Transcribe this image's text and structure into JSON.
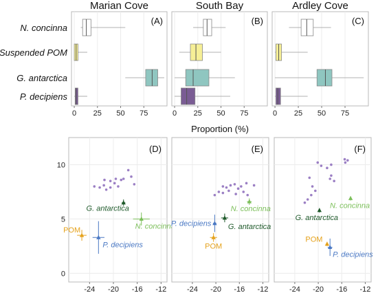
{
  "chart_data": {
    "type": "composite",
    "colors": {
      "purple": "#9b7fc4",
      "boxPurple": "#7a5c94",
      "teal": "#8fc6c0",
      "yellow": "#f6ef96",
      "orange": "#e5a21c",
      "blue": "#4b79c4",
      "green": "#7cbf5a",
      "darkgreen": "#1f5a2b",
      "frame": "#b8b8b8",
      "grid": "#ececec"
    },
    "boxplots": {
      "xlabel": "Proportion (%)",
      "xticks": [
        0,
        25,
        50,
        75
      ],
      "xlim": [
        -3,
        100
      ],
      "categories": [
        "N. concinna",
        "Suspended POM",
        "G. antarctica",
        "P. decipiens"
      ],
      "panels": [
        {
          "title": "Marian Cove",
          "letter": "(A)",
          "boxes": [
            {
              "category": "N. concinna",
              "whisker": [
                7,
                55
              ],
              "q1": 9,
              "median": 13,
              "q3": 18,
              "fill": "#ffffff"
            },
            {
              "category": "Suspended POM",
              "whisker": [
                0,
                14
              ],
              "q1": 0,
              "median": 2,
              "q3": 4,
              "fill": "#f6ef96"
            },
            {
              "category": "G. antarctica",
              "whisker": [
                55,
                97
              ],
              "q1": 77,
              "median": 84,
              "q3": 90,
              "fill": "#8fc6c0"
            },
            {
              "category": "P. decipiens",
              "whisker": [
                0,
                14
              ],
              "q1": 1,
              "median": 2,
              "q3": 4,
              "fill": "#7a5c94"
            }
          ]
        },
        {
          "title": "South Bay",
          "letter": "(B)",
          "boxes": [
            {
              "category": "N. concinna",
              "whisker": [
                20,
                55
              ],
              "q1": 31,
              "median": 35,
              "q3": 40,
              "fill": "#ffffff"
            },
            {
              "category": "Suspended POM",
              "whisker": [
                5,
                50
              ],
              "q1": 17,
              "median": 23,
              "q3": 30,
              "fill": "#f6ef96"
            },
            {
              "category": "G. antarctica",
              "whisker": [
                0,
                65
              ],
              "q1": 12,
              "median": 20,
              "q3": 37,
              "fill": "#8fc6c0"
            },
            {
              "category": "P. decipiens",
              "whisker": [
                0,
                60
              ],
              "q1": 7,
              "median": 13,
              "q3": 22,
              "fill": "#7a5c94"
            }
          ]
        },
        {
          "title": "Ardley Cove",
          "letter": "(C)",
          "boxes": [
            {
              "category": "N. concinna",
              "whisker": [
                15,
                60
              ],
              "q1": 28,
              "median": 34,
              "q3": 41,
              "fill": "#ffffff"
            },
            {
              "category": "Suspended POM",
              "whisker": [
                0,
                35
              ],
              "q1": 1,
              "median": 4,
              "q3": 7,
              "fill": "#f6ef96"
            },
            {
              "category": "G. antarctica",
              "whisker": [
                0,
                95
              ],
              "q1": 45,
              "median": 54,
              "q3": 61,
              "fill": "#8fc6c0"
            },
            {
              "category": "P. decipiens",
              "whisker": [
                0,
                35
              ],
              "q1": 1,
              "median": 3,
              "q3": 6,
              "fill": "#7a5c94"
            }
          ]
        }
      ]
    },
    "scatter": {
      "xticks": [
        -24,
        -20,
        -16,
        -12
      ],
      "yticks": [
        0,
        5,
        10
      ],
      "xlim": [
        -27.5,
        -11
      ],
      "ylim": [
        -0.8,
        12.5
      ],
      "panels": [
        {
          "letter": "(D)",
          "consumers": [
            [
              -23.2,
              8.0
            ],
            [
              -22.3,
              7.9
            ],
            [
              -21.6,
              8.1
            ],
            [
              -21.2,
              7.7
            ],
            [
              -20.5,
              7.9
            ],
            [
              -19.8,
              8.3
            ],
            [
              -18.7,
              8.6
            ],
            [
              -18.3,
              8.7
            ],
            [
              -17.5,
              9.5
            ],
            [
              -21.5,
              8.6
            ],
            [
              -20.5,
              8.5
            ],
            [
              -19.6,
              8.7
            ],
            [
              -19.2,
              8.0
            ],
            [
              -17.0,
              8.9
            ],
            [
              -16.5,
              8.2
            ]
          ],
          "sources": [
            {
              "name": "POM",
              "x": -25.3,
              "y": 3.5,
              "sx": 0.8,
              "sy": 0.5,
              "color": "#e5a21c",
              "label": {
                "text": "POM",
                "dx": -27,
                "dy": -4,
                "anchor": "start",
                "color": "#e5a21c"
              }
            },
            {
              "name": "P. decipiens",
              "x": -22.5,
              "y": 3.3,
              "sx": 1.0,
              "sy": 1.5,
              "color": "#4b79c4",
              "label": {
                "text": "P. decipiens",
                "dx": 6,
                "dy": 14,
                "anchor": "start",
                "color": "#4b79c4"
              }
            },
            {
              "name": "G. antarctica",
              "x": -18.3,
              "y": 6.5,
              "sx": 0.3,
              "sy": 0.3,
              "color": "#1f5a2b",
              "label": {
                "text": "G. antarctica",
                "dx": -23,
                "dy": 12,
                "anchor": "middle",
                "color": "#1f5a2b"
              }
            },
            {
              "name": "N. concinna",
              "x": -15.3,
              "y": 5.0,
              "sx": 1.4,
              "sy": 0.6,
              "color": "#7cbf5a",
              "label": {
                "text": "N. concinna",
                "dx": 20,
                "dy": 14,
                "anchor": "middle",
                "color": "#7cbf5a"
              }
            }
          ]
        },
        {
          "letter": "(E)",
          "consumers": [
            [
              -20.2,
              7.2
            ],
            [
              -19.5,
              7.5
            ],
            [
              -18.8,
              7.4
            ],
            [
              -18.2,
              7.9
            ],
            [
              -17.5,
              8.1
            ],
            [
              -16.8,
              8.2
            ],
            [
              -16.2,
              7.8
            ],
            [
              -15.7,
              8.0
            ],
            [
              -14.8,
              8.3
            ],
            [
              -13.5,
              8.1
            ],
            [
              -18.8,
              8.0
            ],
            [
              -17.8,
              7.6
            ],
            [
              -15.3,
              7.5
            ],
            [
              -14.6,
              7.2
            ],
            [
              -16.6,
              7.3
            ]
          ],
          "sources": [
            {
              "name": "POM",
              "x": -20.4,
              "y": 3.3,
              "sx": 0.6,
              "sy": 0.4,
              "color": "#e5a21c",
              "label": {
                "text": "POM",
                "dx": 0,
                "dy": 16,
                "anchor": "middle",
                "color": "#e5a21c"
              }
            },
            {
              "name": "P. decipiens",
              "x": -20.2,
              "y": 4.6,
              "sx": 0.3,
              "sy": 0.8,
              "color": "#4b79c4",
              "label": {
                "text": "P. decipiens",
                "dx": -5,
                "dy": 4,
                "anchor": "end",
                "color": "#4b79c4"
              }
            },
            {
              "name": "G. antarctica",
              "x": -18.5,
              "y": 5.1,
              "sx": 0.6,
              "sy": 0.4,
              "color": "#1f5a2b",
              "label": {
                "text": "G. antarctica",
                "dx": 5,
                "dy": 16,
                "anchor": "start",
                "color": "#1f5a2b"
              }
            },
            {
              "name": "N. concinna",
              "x": -14.3,
              "y": 6.6,
              "sx": 0.4,
              "sy": 0.3,
              "color": "#7cbf5a",
              "label": {
                "text": "N. concinna",
                "dx": 2,
                "dy": 14,
                "anchor": "middle",
                "color": "#7cbf5a"
              }
            }
          ]
        },
        {
          "letter": "(F)",
          "consumers": [
            [
              -20.1,
              10.2
            ],
            [
              -19.5,
              9.9
            ],
            [
              -18.5,
              9.7
            ],
            [
              -17.8,
              10.0
            ],
            [
              -15.5,
              10.5
            ],
            [
              -15.0,
              10.4
            ],
            [
              -15.4,
              10.2
            ],
            [
              -21.5,
              8.8
            ],
            [
              -21.0,
              8.0
            ],
            [
              -20.5,
              7.6
            ],
            [
              -21.2,
              7.2
            ],
            [
              -21.8,
              6.8
            ],
            [
              -22.3,
              6.5
            ],
            [
              -18.0,
              8.7
            ],
            [
              -17.3,
              8.5
            ],
            [
              -17.8,
              9.0
            ]
          ],
          "sources": [
            {
              "name": "POM",
              "x": -18.5,
              "y": 2.7,
              "sx": 0.2,
              "sy": 0.2,
              "color": "#e5a21c",
              "label": {
                "text": "POM",
                "dx": -19,
                "dy": -3,
                "anchor": "middle",
                "color": "#e5a21c"
              }
            },
            {
              "name": "P. decipiens",
              "x": -18.0,
              "y": 2.4,
              "sx": 0.4,
              "sy": 0.8,
              "color": "#4b79c4",
              "label": {
                "text": "P. decipiens",
                "dx": 4,
                "dy": 14,
                "anchor": "start",
                "color": "#4b79c4"
              }
            },
            {
              "name": "G. antarctica",
              "x": -19.8,
              "y": 5.8,
              "sx": 0.2,
              "sy": 0.2,
              "color": "#1f5a2b",
              "label": {
                "text": "G. antarctica",
                "dx": -4,
                "dy": 14,
                "anchor": "middle",
                "color": "#1f5a2b"
              }
            },
            {
              "name": "N. concinna",
              "x": -14.5,
              "y": 6.9,
              "sx": 0.2,
              "sy": 0.2,
              "color": "#7cbf5a",
              "label": {
                "text": "N. concinna",
                "dx": -1,
                "dy": 14,
                "anchor": "middle",
                "color": "#7cbf5a"
              }
            }
          ]
        }
      ]
    }
  }
}
